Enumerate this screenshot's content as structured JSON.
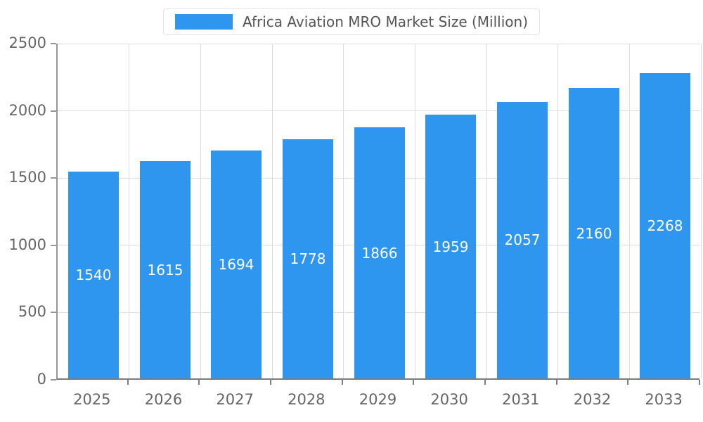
{
  "chart_data": {
    "type": "bar",
    "title": "Africa Aviation MRO Market Size (Million)",
    "categories": [
      "2025",
      "2026",
      "2027",
      "2028",
      "2029",
      "2030",
      "2031",
      "2032",
      "2033"
    ],
    "values": [
      1540,
      1615,
      1694,
      1778,
      1866,
      1959,
      2057,
      2160,
      2268
    ],
    "xlabel": "",
    "ylabel": "",
    "ylim": [
      0,
      2500
    ],
    "yticks": [
      0,
      500,
      1000,
      1500,
      2000,
      2500
    ],
    "grid": true,
    "legend_position": "top",
    "bar_color": "#2f96f0",
    "bar_value_label_color": "#ffffff",
    "axis_text_color": "#666666"
  },
  "legend": {
    "label": "Africa Aviation MRO Market Size (Million)"
  }
}
